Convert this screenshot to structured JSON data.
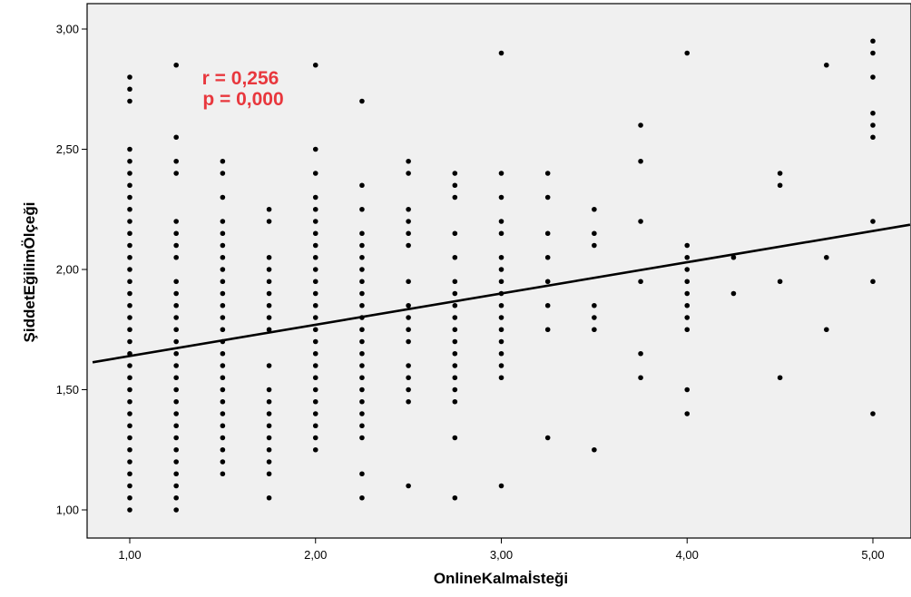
{
  "chart_data": {
    "type": "scatter",
    "xlabel": "OnlineKalmaİsteği",
    "ylabel": "ŞiddetEğilimÖlçeği",
    "xlim": [
      0.8,
      5.2
    ],
    "ylim": [
      0.92,
      3.12
    ],
    "x_ticks": [
      1,
      2,
      3,
      4,
      5
    ],
    "y_ticks": [
      1,
      1.5,
      2,
      2.5,
      3
    ],
    "x_tick_labels": [
      "1,00",
      "2,00",
      "3,00",
      "4,00",
      "5,00"
    ],
    "y_tick_labels": [
      "1,00",
      "1,50",
      "2,00",
      "2,50",
      "3,00"
    ],
    "grid": false,
    "colors": {
      "plot_bg": "#f0f0f0",
      "points": "#000000",
      "fit_line": "#000000",
      "annotation": "#e8373d"
    },
    "annotations": [
      "r = 0,256",
      "p = 0,000"
    ],
    "fit_line": {
      "intercept": 1.51,
      "slope": 0.13
    },
    "columns": [
      {
        "x": 1.0,
        "y": [
          1.0,
          1.05,
          1.1,
          1.15,
          1.2,
          1.25,
          1.3,
          1.35,
          1.4,
          1.45,
          1.5,
          1.55,
          1.6,
          1.65,
          1.7,
          1.75,
          1.8,
          1.85,
          1.9,
          1.95,
          2.0,
          2.05,
          2.1,
          2.15,
          2.2,
          2.25,
          2.3,
          2.35,
          2.4,
          2.45,
          2.5,
          2.7,
          2.75,
          2.8
        ]
      },
      {
        "x": 1.25,
        "y": [
          1.0,
          1.05,
          1.1,
          1.15,
          1.2,
          1.25,
          1.3,
          1.35,
          1.4,
          1.45,
          1.5,
          1.55,
          1.6,
          1.65,
          1.7,
          1.75,
          1.8,
          1.85,
          1.9,
          1.95,
          2.05,
          2.1,
          2.15,
          2.2,
          2.4,
          2.45,
          2.55,
          2.85
        ]
      },
      {
        "x": 1.5,
        "y": [
          1.15,
          1.2,
          1.25,
          1.3,
          1.35,
          1.4,
          1.45,
          1.5,
          1.55,
          1.6,
          1.65,
          1.7,
          1.75,
          1.8,
          1.85,
          1.9,
          1.95,
          2.0,
          2.05,
          2.1,
          2.15,
          2.2,
          2.3,
          2.4,
          2.45
        ]
      },
      {
        "x": 1.75,
        "y": [
          1.05,
          1.15,
          1.2,
          1.25,
          1.3,
          1.35,
          1.4,
          1.45,
          1.5,
          1.6,
          1.75,
          1.8,
          1.85,
          1.9,
          1.95,
          2.0,
          2.05,
          2.2,
          2.25
        ]
      },
      {
        "x": 2.0,
        "y": [
          1.25,
          1.3,
          1.35,
          1.4,
          1.45,
          1.5,
          1.55,
          1.6,
          1.65,
          1.7,
          1.75,
          1.8,
          1.85,
          1.9,
          1.95,
          2.0,
          2.05,
          2.1,
          2.15,
          2.2,
          2.25,
          2.3,
          2.4,
          2.5,
          2.85
        ]
      },
      {
        "x": 2.25,
        "y": [
          1.05,
          1.15,
          1.3,
          1.35,
          1.4,
          1.45,
          1.5,
          1.55,
          1.6,
          1.65,
          1.7,
          1.75,
          1.8,
          1.85,
          1.9,
          1.95,
          2.0,
          2.05,
          2.1,
          2.15,
          2.25,
          2.35,
          2.7
        ]
      },
      {
        "x": 2.5,
        "y": [
          1.1,
          1.45,
          1.5,
          1.55,
          1.6,
          1.7,
          1.75,
          1.8,
          1.85,
          1.95,
          2.1,
          2.15,
          2.2,
          2.25,
          2.4,
          2.45
        ]
      },
      {
        "x": 2.75,
        "y": [
          1.05,
          1.3,
          1.45,
          1.5,
          1.55,
          1.6,
          1.65,
          1.7,
          1.75,
          1.8,
          1.85,
          1.9,
          1.95,
          2.05,
          2.15,
          2.3,
          2.35,
          2.4
        ]
      },
      {
        "x": 3.0,
        "y": [
          1.1,
          1.55,
          1.6,
          1.65,
          1.7,
          1.75,
          1.8,
          1.85,
          1.9,
          1.95,
          2.0,
          2.05,
          2.15,
          2.2,
          2.3,
          2.4,
          2.9
        ]
      },
      {
        "x": 3.25,
        "y": [
          1.3,
          1.75,
          1.85,
          1.95,
          2.05,
          2.15,
          2.3,
          2.4
        ]
      },
      {
        "x": 3.5,
        "y": [
          1.25,
          1.75,
          1.8,
          1.85,
          2.1,
          2.15,
          2.25
        ]
      },
      {
        "x": 3.75,
        "y": [
          1.55,
          1.65,
          1.95,
          2.2,
          2.45,
          2.6
        ]
      },
      {
        "x": 4.0,
        "y": [
          1.4,
          1.5,
          1.75,
          1.8,
          1.85,
          1.9,
          1.95,
          2.0,
          2.05,
          2.1,
          2.9
        ]
      },
      {
        "x": 4.25,
        "y": [
          1.9,
          2.05
        ]
      },
      {
        "x": 4.5,
        "y": [
          1.55,
          1.95,
          2.35,
          2.4
        ]
      },
      {
        "x": 4.75,
        "y": [
          1.75,
          2.05,
          2.85
        ]
      },
      {
        "x": 5.0,
        "y": [
          1.4,
          1.95,
          2.2,
          2.55,
          2.6,
          2.65,
          2.8,
          2.9,
          2.95
        ]
      }
    ]
  }
}
